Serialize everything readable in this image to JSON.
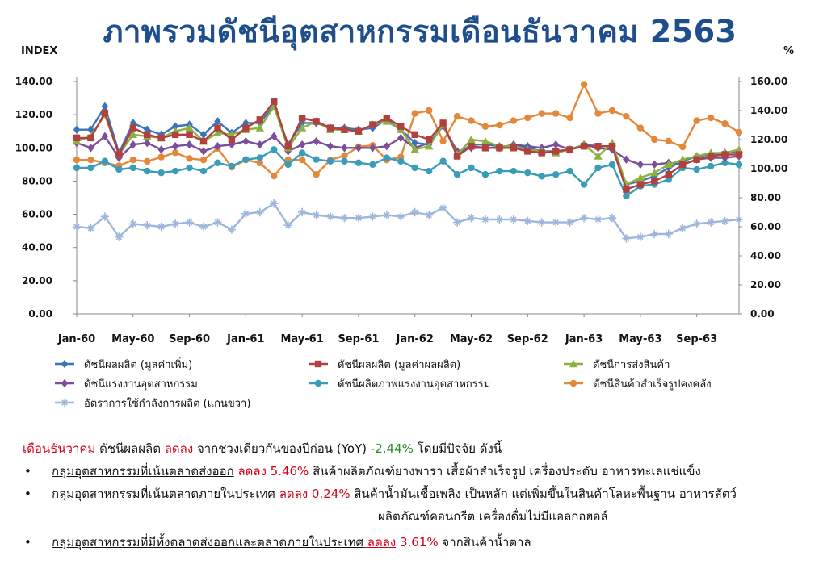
{
  "title": "ภาพรวมดัชนีอุตสาหกรรมเดือนธันวาคม  2563",
  "left_unit": "INDEX",
  "right_unit": "%",
  "colors": {
    "mpi_value_added": "#3b73b9",
    "mpi_gross_output": "#b0413e",
    "shipment": "#8db040",
    "labor": "#7a4e9b",
    "productivity": "#3a9cb8",
    "inventory": "#e3883a",
    "capacity": "#9fb6dc",
    "title": "#1f4e8c",
    "red": "#d0021b",
    "green": "#2a8a2a"
  },
  "chart_data": {
    "type": "line",
    "x_tick_labels": [
      "Jan-60",
      "May-60",
      "Sep-60",
      "Jan-61",
      "May-61",
      "Sep-61",
      "Jan-62",
      "May-62",
      "Sep-62",
      "Jan-63",
      "May-63",
      "Sep-63"
    ],
    "x_count": 48,
    "left_ticks": [
      "0.00",
      "20.00",
      "40.00",
      "60.00",
      "80.00",
      "100.00",
      "120.00",
      "140.00"
    ],
    "right_ticks": [
      "0.00",
      "20.00",
      "40.00",
      "60.00",
      "80.00",
      "100.00",
      "120.00",
      "140.00",
      "160.00"
    ],
    "ylim_left": [
      0,
      140
    ],
    "ylim_right": [
      0,
      160
    ],
    "series": [
      {
        "name": "ดัชนีผลผลิต (มูลค่าเพิ่ม)",
        "color_key": "mpi_value_added",
        "marker": "diamond",
        "axis": "left",
        "values": [
          111,
          111,
          125,
          97,
          115,
          111,
          108,
          113,
          114,
          108,
          116,
          109,
          115,
          115,
          126,
          102,
          115,
          115,
          112,
          112,
          111,
          112,
          117,
          111,
          103,
          102,
          114,
          96,
          102,
          102,
          101,
          101,
          100,
          98,
          98,
          99,
          102,
          101,
          101,
          78,
          80,
          83,
          88,
          92,
          95,
          96,
          97,
          98
        ]
      },
      {
        "name": "ดัชนีผลผลิต (มูลค่าผลผลิต)",
        "color_key": "mpi_gross_output",
        "marker": "square",
        "axis": "left",
        "values": [
          106,
          106,
          121,
          96,
          112,
          108,
          106,
          108,
          108,
          104,
          112,
          105,
          112,
          117,
          128,
          101,
          118,
          116,
          112,
          111,
          110,
          114,
          118,
          113,
          108,
          105,
          115,
          95,
          101,
          100,
          100,
          100,
          98,
          97,
          98,
          99,
          101,
          101,
          101,
          75,
          78,
          80,
          84,
          90,
          93,
          95,
          96,
          96
        ]
      },
      {
        "name": "ดัชนีการส่งสินค้า",
        "color_key": "shipment",
        "marker": "triangle",
        "axis": "left",
        "values": [
          104,
          107,
          120,
          96,
          108,
          107,
          106,
          110,
          112,
          104,
          109,
          108,
          111,
          112,
          125,
          100,
          112,
          116,
          111,
          111,
          110,
          114,
          116,
          111,
          99,
          101,
          114,
          96,
          105,
          104,
          101,
          101,
          99,
          98,
          97,
          99,
          102,
          95,
          103,
          78,
          82,
          85,
          90,
          93,
          95,
          97,
          97,
          99
        ]
      },
      {
        "name": "ดัชนีแรงงานอุตสาหกรรม",
        "color_key": "labor",
        "marker": "diamond",
        "axis": "left",
        "values": [
          103,
          100,
          107,
          94,
          102,
          103,
          99,
          101,
          102,
          98,
          101,
          102,
          104,
          102,
          107,
          98,
          102,
          104,
          101,
          100,
          100,
          100,
          101,
          106,
          100,
          103,
          113,
          98,
          100,
          100,
          100,
          102,
          101,
          100,
          102,
          99,
          102,
          100,
          99,
          93,
          90,
          90,
          91,
          90,
          93,
          94,
          94,
          95
        ]
      },
      {
        "name": "ดัชนีผลิตภาพแรงงานอุตสาหกรรม",
        "color_key": "productivity",
        "marker": "circle",
        "axis": "left",
        "values": [
          88,
          88,
          92,
          87,
          88,
          86,
          85,
          86,
          88,
          86,
          91,
          89,
          93,
          94,
          99,
          90,
          97,
          93,
          92,
          92,
          91,
          90,
          94,
          92,
          88,
          86,
          92,
          84,
          88,
          84,
          86,
          86,
          85,
          83,
          84,
          86,
          78,
          88,
          90,
          71,
          77,
          78,
          81,
          88,
          87,
          89,
          91,
          90
        ]
      },
      {
        "name": "ดัชนีสินค้าสำเร็จรูปคงคลัง",
        "color_key": "inventory",
        "marker": "circle",
        "axis": "right",
        "values": [
          106,
          106,
          104,
          102,
          106,
          105,
          108,
          111,
          107,
          106,
          114,
          101,
          106,
          104,
          95,
          106,
          106,
          96,
          106,
          109,
          115,
          116,
          106,
          108,
          138,
          140,
          119,
          136,
          133,
          129,
          130,
          133,
          135,
          138,
          138,
          135,
          158,
          138,
          140,
          136,
          128,
          120,
          119,
          115,
          133,
          135,
          131,
          125
        ]
      },
      {
        "name": "อัตราการใช้กำลังการผลิต (แกนขวา)",
        "color_key": "capacity",
        "marker": "star",
        "axis": "right",
        "values": [
          60,
          59,
          67,
          53,
          62,
          61,
          60,
          62,
          63,
          60,
          63,
          58,
          69,
          70,
          76,
          61,
          70,
          68,
          67,
          66,
          66,
          67,
          68,
          67,
          70,
          68,
          73,
          63,
          66,
          65,
          65,
          65,
          64,
          63,
          63,
          63,
          66,
          65,
          66,
          52,
          53,
          55,
          55,
          59,
          62,
          63,
          64,
          65
        ]
      }
    ]
  },
  "notes": {
    "line1": {
      "month": "เดือนธันวาคม",
      "t1": " ดัชนีผลผลิต ",
      "down": "ลดลง",
      "t2": " จากช่วงเดียวกันของปีก่อน (YoY) ",
      "pct": "-2.44%",
      "t3": " โดยมีปัจจัย ดังนี้"
    },
    "bullet": "•",
    "line2": {
      "group": "กลุ่มอุตสาหกรรมที่เน้นตลาดส่งออก",
      "change": " ลดลง 5.46%",
      "rest": " สินค้าผลิตภัณฑ์ยางพารา เสื้อผ้าสำเร็จรูป เครื่องประดับ อาหารทะเลแช่แข็ง"
    },
    "line3": {
      "group": "กลุ่มอุตสาหกรรมที่เน้นตลาดภายในประเทศ",
      "change": " ลดลง 0.24%",
      "rest": " สินค้าน้ำมันเชื้อเพลิง เป็นหลัก แต่เพิ่มขึ้นในสินค้าโลหะพื้นฐาน อาหารสัตว์",
      "rest2": "ผลิตภัณฑ์คอนกรีต เครื่องดื่มไม่มีแอลกอฮอล์"
    },
    "line4": {
      "group": "กลุ่มอุตสาหกรรมที่มีทั้งตลาดส่งออกและตลาดภายในประเทศ",
      "down": " ลดลง",
      "pct": " 3.61%",
      "rest": "  จากสินค้าน้ำตาล"
    }
  }
}
